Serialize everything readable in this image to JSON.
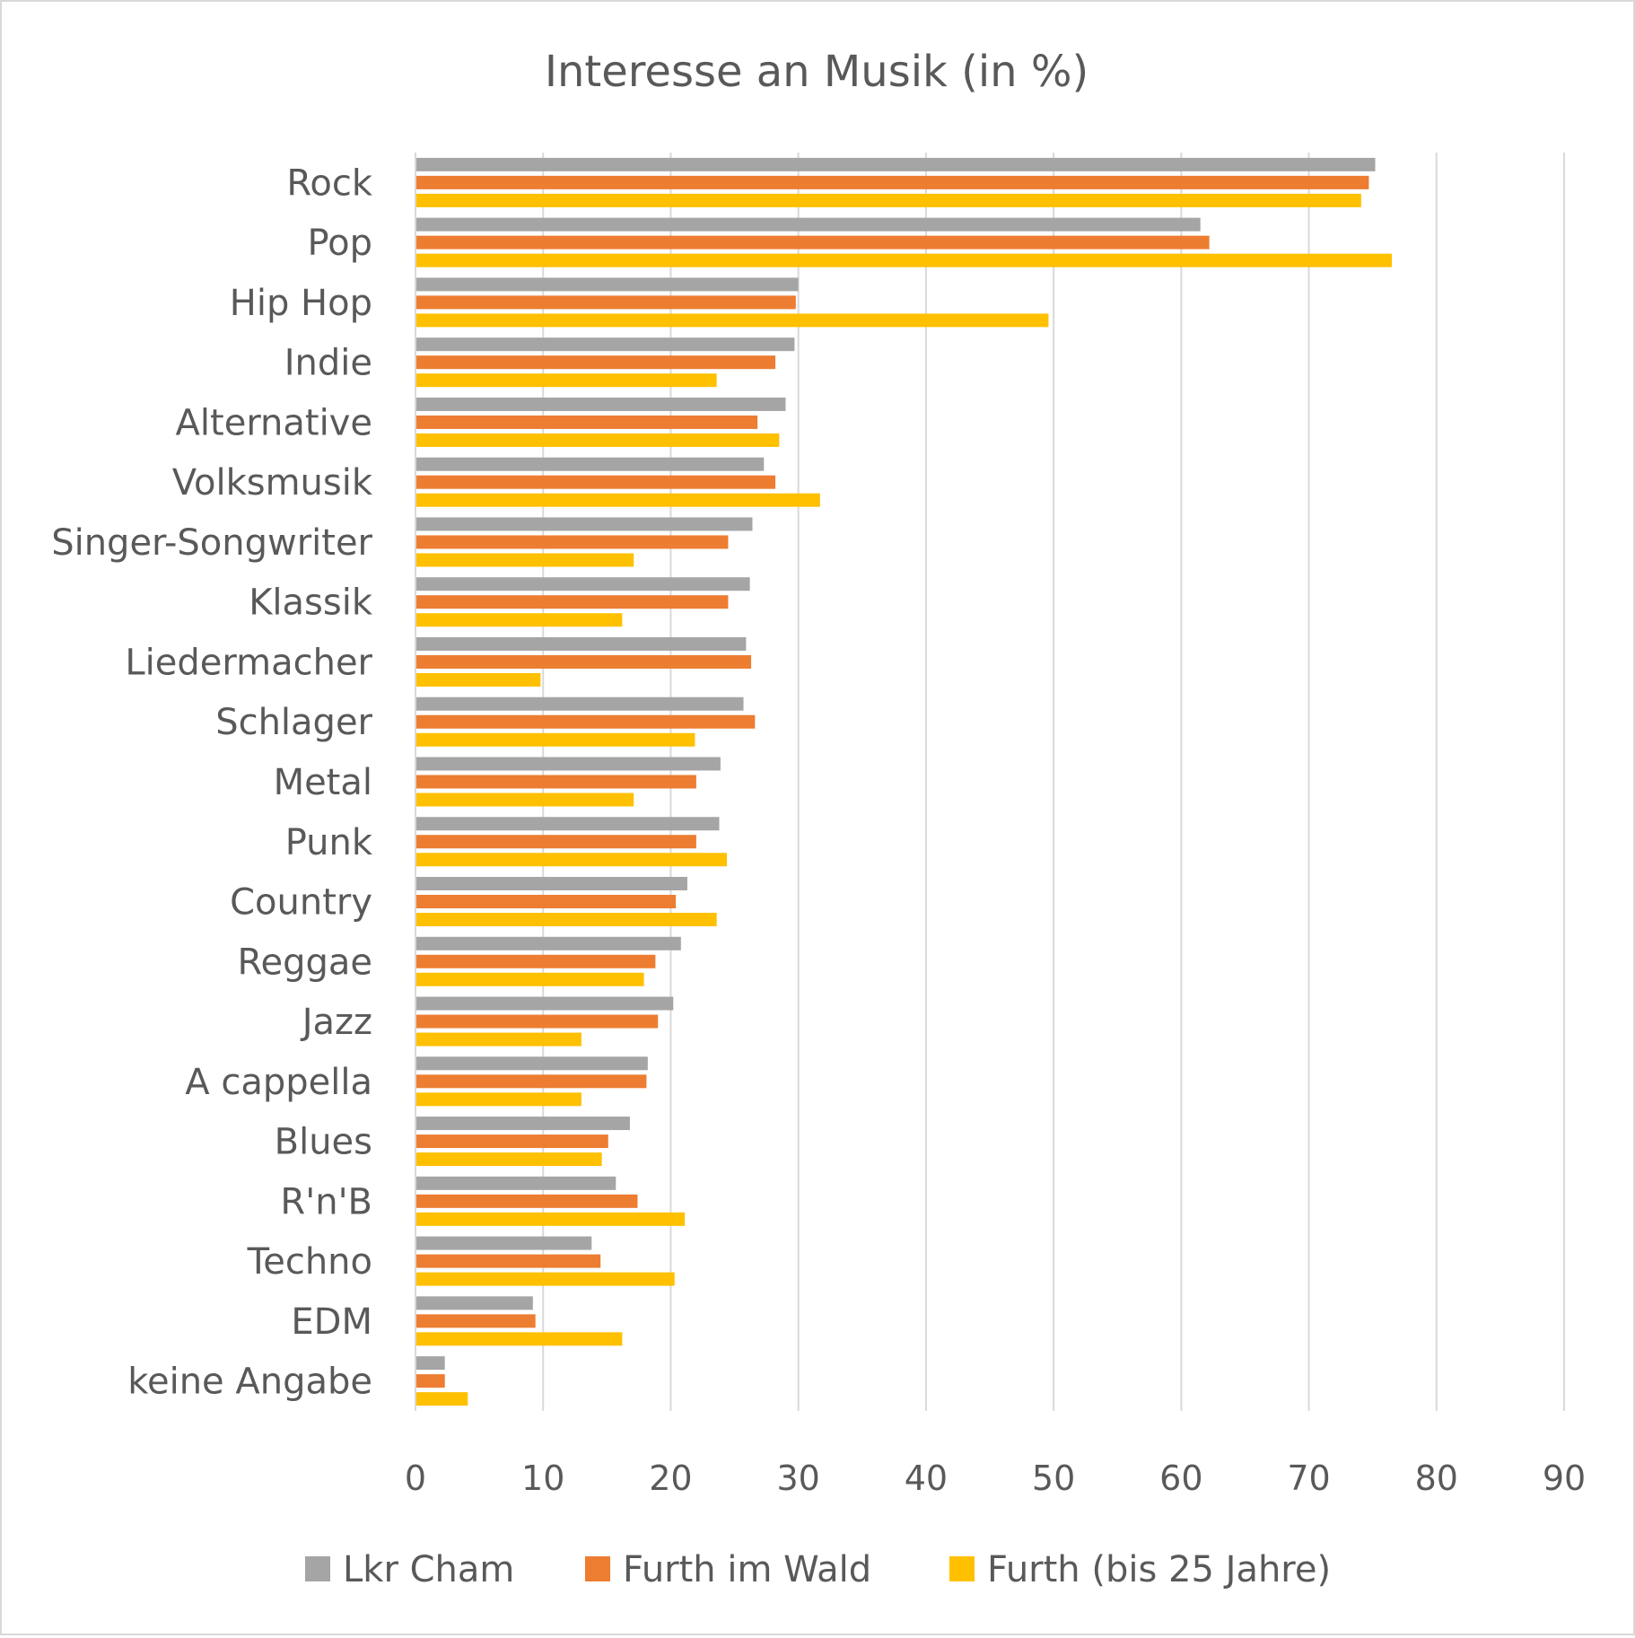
{
  "chart_data": {
    "type": "bar",
    "orientation": "horizontal",
    "title": "Interesse an Musik (in %)",
    "xlabel": "",
    "ylabel": "",
    "xlim": [
      0,
      90
    ],
    "xticks": [
      "0",
      "10",
      "20",
      "30",
      "40",
      "50",
      "60",
      "70",
      "80",
      "90"
    ],
    "grid": "vertical",
    "legend_position": "bottom",
    "categories": [
      "Rock",
      "Pop",
      "Hip Hop",
      "Indie",
      "Alternative",
      "Volksmusik",
      "Singer-Songwriter",
      "Klassik",
      "Liedermacher",
      "Schlager",
      "Metal",
      "Punk",
      "Country",
      "Reggae",
      "Jazz",
      "A cappella",
      "Blues",
      "R'n'B",
      "Techno",
      "EDM",
      "keine Angabe"
    ],
    "series": [
      {
        "name": "Lkr Cham",
        "color": "#a5a5a5",
        "values": [
          75.2,
          61.5,
          30.0,
          29.7,
          29.0,
          27.3,
          26.4,
          26.2,
          25.9,
          25.7,
          23.9,
          23.8,
          21.3,
          20.8,
          20.2,
          18.2,
          16.8,
          15.7,
          13.8,
          9.2,
          2.3
        ]
      },
      {
        "name": "Furth im Wald",
        "color": "#ed7d31",
        "values": [
          74.7,
          62.2,
          29.8,
          28.2,
          26.8,
          28.2,
          24.5,
          24.5,
          26.3,
          26.6,
          22.0,
          22.0,
          20.4,
          18.8,
          19.0,
          18.1,
          15.1,
          17.4,
          14.5,
          9.4,
          2.3
        ]
      },
      {
        "name": "Furth (bis 25 Jahre)",
        "color": "#ffc000",
        "values": [
          74.1,
          76.5,
          49.6,
          23.6,
          28.5,
          31.7,
          17.1,
          16.2,
          9.8,
          21.9,
          17.1,
          24.4,
          23.6,
          17.9,
          13.0,
          13.0,
          14.6,
          21.1,
          20.3,
          16.2,
          4.1
        ]
      }
    ]
  }
}
